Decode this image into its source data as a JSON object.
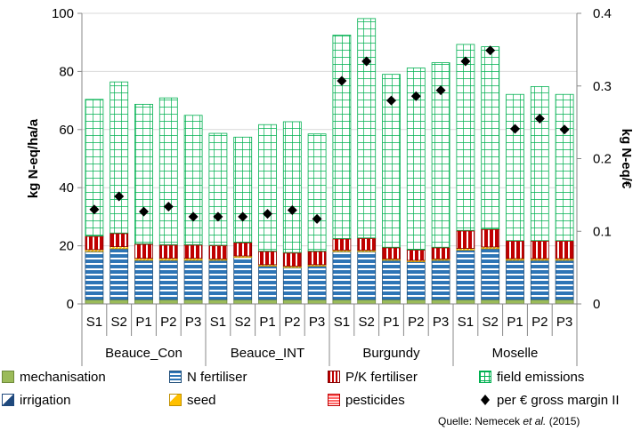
{
  "chart_data": {
    "type": "bar",
    "stacked": true,
    "ylabel": "kg N-eq/ha/a",
    "y2label": "kg N-eq/€",
    "ylim": [
      0,
      100
    ],
    "y2lim": [
      0,
      0.4
    ],
    "yticks": [
      "0",
      "20",
      "40",
      "60",
      "80",
      "100"
    ],
    "y2ticks": [
      "0",
      "0.1",
      "0.2",
      "0.3",
      "0.4"
    ],
    "groups": [
      {
        "name": "Beauce_Con",
        "categories": [
          "S1",
          "S2",
          "P1",
          "P2",
          "P3"
        ]
      },
      {
        "name": "Beauce_INT",
        "categories": [
          "S1",
          "S2",
          "P1",
          "P2",
          "P3"
        ]
      },
      {
        "name": "Burgundy",
        "categories": [
          "S1",
          "S2",
          "P1",
          "P2",
          "P3"
        ]
      },
      {
        "name": "Moselle",
        "categories": [
          "S1",
          "S2",
          "P1",
          "P2",
          "P3"
        ]
      }
    ],
    "series": [
      {
        "name": "mechanisation",
        "axis": "left",
        "values": [
          1.5,
          1.5,
          1.5,
          1.5,
          1.5,
          1.5,
          1.5,
          1.5,
          1.5,
          1.5,
          1.5,
          1.5,
          1.5,
          1.5,
          1.5,
          1.5,
          1.5,
          1.5,
          1.5,
          1.5
        ]
      },
      {
        "name": "irrigation",
        "axis": "left",
        "values": [
          0,
          0,
          0,
          0,
          0,
          0,
          0,
          0,
          0,
          0,
          0,
          0,
          0,
          0,
          0,
          0,
          0,
          0,
          0,
          0
        ]
      },
      {
        "name": "N fertiliser",
        "axis": "left",
        "values": [
          16.5,
          17.5,
          13.5,
          13.5,
          13.5,
          13.5,
          14.5,
          11.5,
          11,
          11.5,
          16.5,
          16.5,
          13.5,
          13,
          13.5,
          17,
          17.5,
          13.5,
          13.5,
          13.5
        ]
      },
      {
        "name": "seed",
        "axis": "left",
        "values": [
          0.7,
          0.7,
          0.7,
          0.7,
          0.7,
          0.5,
          0.5,
          0.5,
          0.5,
          0.5,
          0.5,
          0.5,
          0.5,
          0.5,
          0.5,
          0.6,
          0.6,
          0.6,
          0.6,
          0.6
        ]
      },
      {
        "name": "P/K fertiliser",
        "axis": "left",
        "values": [
          4.5,
          4.5,
          4.8,
          4.5,
          4.5,
          4.5,
          4.5,
          4.5,
          4.5,
          4.5,
          3.8,
          4,
          3.8,
          3.5,
          3.8,
          6,
          6,
          6,
          6,
          6
        ]
      },
      {
        "name": "pesticides",
        "axis": "left",
        "values": [
          0.2,
          0.2,
          0.2,
          0.2,
          0.2,
          0.2,
          0.2,
          0.2,
          0.2,
          0.2,
          0.2,
          0.2,
          0.2,
          0.2,
          0.2,
          0.2,
          0.2,
          0.2,
          0.2,
          0.2
        ]
      },
      {
        "name": "field emissions",
        "axis": "left",
        "values": [
          47,
          52,
          48,
          50.5,
          44.5,
          38.5,
          36.2,
          43.5,
          45,
          40.3,
          70,
          75.5,
          59.5,
          62.5,
          63.5,
          64,
          62.7,
          50.3,
          53,
          50.3
        ]
      },
      {
        "name": "per € gross margin II",
        "axis": "right",
        "marker": "diamond",
        "values": [
          0.13,
          0.148,
          0.127,
          0.134,
          0.12,
          0.12,
          0.12,
          0.124,
          0.129,
          0.117,
          0.307,
          0.334,
          0.28,
          0.286,
          0.294,
          0.334,
          0.349,
          0.241,
          0.255,
          0.24
        ]
      }
    ],
    "colors": {
      "mechanisation": "#9bbb59",
      "irrigation": "#1f497d",
      "n_fertiliser_fill": "#2e75b6",
      "n_fertiliser_stripe": "#ffffff",
      "seed_fill": "#ffc000",
      "seed_stripe": "#ffffff",
      "pk_fertiliser_fill": "#c00000",
      "pk_fertiliser_stripe": "#ffffff",
      "pesticides_fill": "#ff6666",
      "field_emissions_grid": "#00b050",
      "field_emissions_fill": "#ffffff",
      "marker": "#000000",
      "gridline": "#d9d9d9"
    },
    "grid": true,
    "legend_placement": "bottom"
  },
  "source_note": {
    "prefix": "Quelle: Nemecek ",
    "italic": "et al.",
    "suffix": " (2015)"
  }
}
